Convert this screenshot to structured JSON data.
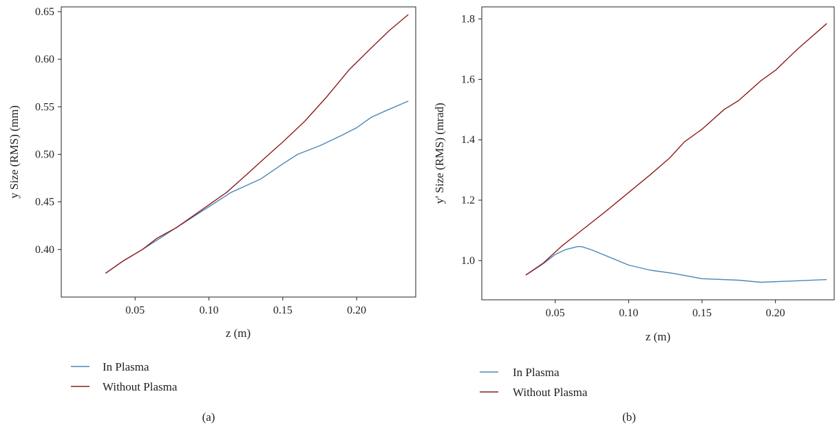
{
  "colors": {
    "in_plasma": "#4a86b8",
    "without_plasma": "#8b1a1a",
    "axis": "#222222"
  },
  "chart_data": [
    {
      "type": "line",
      "caption": "(a)",
      "xlabel": "z (m)",
      "ylabel": "y Size (RMS) (mm)",
      "xlim": [
        0.0,
        0.24
      ],
      "ylim": [
        0.35,
        0.655
      ],
      "xticks": [
        0.05,
        0.1,
        0.15,
        0.2
      ],
      "xtick_labels": [
        "0.05",
        "0.10",
        "0.15",
        "0.20"
      ],
      "yticks": [
        0.4,
        0.45,
        0.5,
        0.55,
        0.6,
        0.65
      ],
      "ytick_labels": [
        "0.40",
        "0.45",
        "0.50",
        "0.55",
        "0.60",
        "0.65"
      ],
      "legend_position": "below",
      "series": [
        {
          "name": "In Plasma",
          "color": "#4a86b8",
          "x": [
            0.03,
            0.042,
            0.055,
            0.065,
            0.075,
            0.085,
            0.1,
            0.115,
            0.125,
            0.135,
            0.15,
            0.16,
            0.175,
            0.19,
            0.2,
            0.21,
            0.22,
            0.235
          ],
          "y": [
            0.375,
            0.388,
            0.4,
            0.41,
            0.42,
            0.43,
            0.445,
            0.46,
            0.467,
            0.474,
            0.49,
            0.5,
            0.509,
            0.52,
            0.528,
            0.539,
            0.546,
            0.556
          ]
        },
        {
          "name": "Without Plasma",
          "color": "#8b1a1a",
          "x": [
            0.03,
            0.042,
            0.055,
            0.065,
            0.078,
            0.09,
            0.1,
            0.112,
            0.125,
            0.137,
            0.15,
            0.165,
            0.18,
            0.195,
            0.21,
            0.222,
            0.235
          ],
          "y": [
            0.375,
            0.388,
            0.4,
            0.412,
            0.423,
            0.436,
            0.447,
            0.46,
            0.478,
            0.495,
            0.513,
            0.535,
            0.561,
            0.589,
            0.612,
            0.63,
            0.647
          ]
        }
      ]
    },
    {
      "type": "line",
      "caption": "(b)",
      "xlabel": "z (m)",
      "ylabel": "y' Size (RMS) (mrad)",
      "xlim": [
        0.0,
        0.24
      ],
      "ylim": [
        0.87,
        1.84
      ],
      "xticks": [
        0.05,
        0.1,
        0.15,
        0.2
      ],
      "xtick_labels": [
        "0.05",
        "0.10",
        "0.15",
        "0.20"
      ],
      "yticks": [
        1.0,
        1.2,
        1.4,
        1.6,
        1.8
      ],
      "ytick_labels": [
        "1.0",
        "1.2",
        "1.4",
        "1.6",
        "1.8"
      ],
      "legend_position": "below",
      "series": [
        {
          "name": "In Plasma",
          "color": "#4a86b8",
          "x": [
            0.03,
            0.042,
            0.05,
            0.057,
            0.065,
            0.068,
            0.075,
            0.09,
            0.1,
            0.115,
            0.13,
            0.15,
            0.175,
            0.19,
            0.21,
            0.235
          ],
          "y": [
            0.952,
            0.99,
            1.02,
            1.036,
            1.046,
            1.046,
            1.035,
            1.005,
            0.985,
            0.968,
            0.958,
            0.94,
            0.935,
            0.928,
            0.932,
            0.937
          ]
        },
        {
          "name": "Without Plasma",
          "color": "#8b1a1a",
          "x": [
            0.03,
            0.042,
            0.055,
            0.068,
            0.085,
            0.1,
            0.115,
            0.128,
            0.138,
            0.15,
            0.165,
            0.175,
            0.19,
            0.2,
            0.215,
            0.235
          ],
          "y": [
            0.952,
            0.992,
            1.05,
            1.1,
            1.165,
            1.225,
            1.285,
            1.34,
            1.393,
            1.435,
            1.5,
            1.53,
            1.595,
            1.63,
            1.7,
            1.785
          ]
        }
      ]
    }
  ]
}
